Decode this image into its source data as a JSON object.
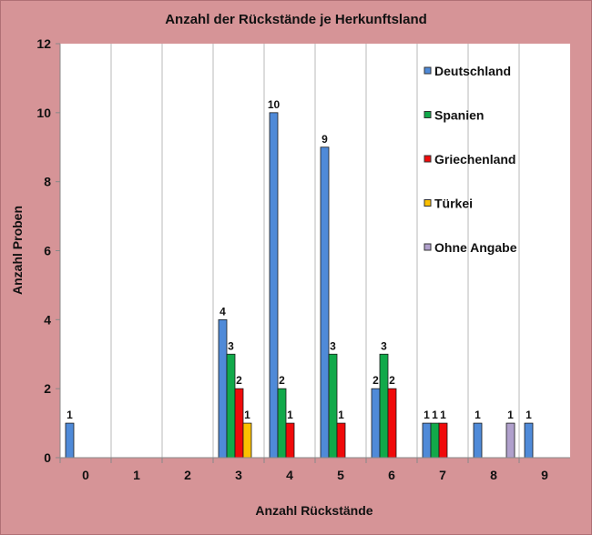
{
  "chart_data": {
    "type": "bar",
    "title": "Anzahl der Rückstände je Herkunftsland",
    "xlabel": "Anzahl Rückstände",
    "ylabel": "Anzahl Proben",
    "categories": [
      "0",
      "1",
      "2",
      "3",
      "4",
      "5",
      "6",
      "7",
      "8",
      "9"
    ],
    "ylim": [
      0,
      12
    ],
    "yticks": [
      "0",
      "2",
      "4",
      "6",
      "8",
      "10",
      "12"
    ],
    "grid": "vertical",
    "legend_position": "right",
    "series": [
      {
        "name": "Deutschland",
        "color": "#4f8ad8",
        "values": [
          1,
          0,
          0,
          4,
          10,
          9,
          2,
          1,
          1,
          1
        ]
      },
      {
        "name": "Spanien",
        "color": "#11a94a",
        "values": [
          0,
          0,
          0,
          3,
          2,
          3,
          3,
          1,
          0,
          0
        ]
      },
      {
        "name": "Griechenland",
        "color": "#f00a0a",
        "values": [
          0,
          0,
          0,
          2,
          1,
          1,
          2,
          1,
          0,
          0
        ]
      },
      {
        "name": "Türkei",
        "color": "#fcc000",
        "values": [
          0,
          0,
          0,
          1,
          0,
          0,
          0,
          0,
          0,
          0
        ]
      },
      {
        "name": "Ohne Angabe",
        "color": "#b0a0cc",
        "values": [
          0,
          0,
          0,
          0,
          0,
          0,
          0,
          0,
          1,
          0
        ]
      }
    ]
  }
}
